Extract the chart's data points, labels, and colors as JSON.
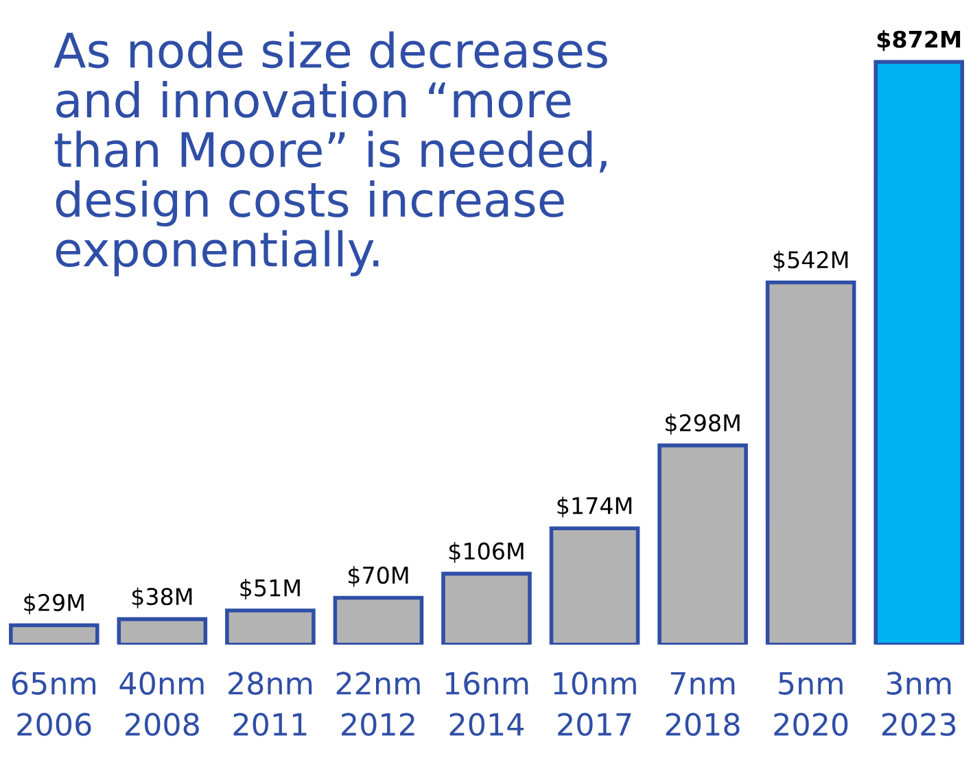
{
  "chart_data": {
    "type": "bar",
    "title": "As node size decreases\nand innovation “more\nthan Moore” is needed,\ndesign costs increase\nexponentially.",
    "categories": [
      "65nm\n2006",
      "40nm\n2008",
      "28nm\n2011",
      "22nm\n2012",
      "16nm\n2014",
      "10nm\n2017",
      "7nm\n2018",
      "5nm\n2020",
      "3nm\n2023"
    ],
    "values": [
      29,
      38,
      51,
      70,
      106,
      174,
      298,
      542,
      872
    ],
    "value_labels": [
      "$29M",
      "$38M",
      "$51M",
      "$70M",
      "$106M",
      "$174M",
      "$298M",
      "$542M",
      "$872M"
    ],
    "colors": [
      "#b3b3b3",
      "#b3b3b3",
      "#b3b3b3",
      "#b3b3b3",
      "#b3b3b3",
      "#b3b3b3",
      "#b3b3b3",
      "#b3b3b3",
      "#00b0f0"
    ],
    "grid": false,
    "legend": false
  }
}
